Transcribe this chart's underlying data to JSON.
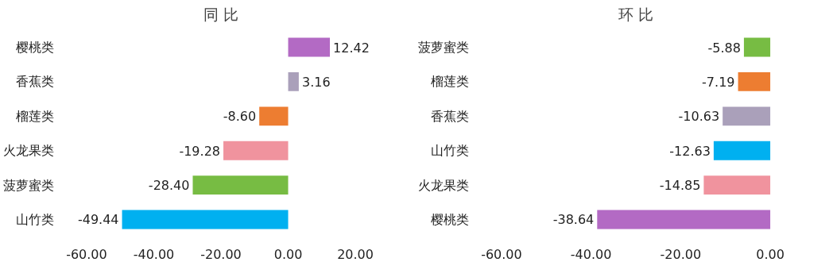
{
  "chart_data": [
    {
      "type": "bar",
      "orientation": "horizontal",
      "title": "同 比",
      "categories": [
        "樱桃类",
        "香蕉类",
        "榴莲类",
        "火龙果类",
        "菠萝蜜类",
        "山竹类"
      ],
      "values": [
        12.42,
        3.16,
        -8.6,
        -19.28,
        -28.4,
        -49.44
      ],
      "colors": [
        "#b36ac4",
        "#aaa0ba",
        "#ed7d31",
        "#f0939e",
        "#77bc43",
        "#00b0f0"
      ],
      "value_labels": [
        "12.42",
        "3.16",
        "-8.60",
        "-19.28",
        "-28.40",
        "-49.44"
      ],
      "xlim": [
        -60,
        20
      ],
      "xticks": [
        {
          "value": -60,
          "label": "-60.00"
        },
        {
          "value": -40,
          "label": "-40.00"
        },
        {
          "value": -20,
          "label": "-20.00"
        },
        {
          "value": 0,
          "label": "0.00"
        },
        {
          "value": 20,
          "label": "20.00"
        }
      ],
      "grid": false
    },
    {
      "type": "bar",
      "orientation": "horizontal",
      "title": "环 比",
      "categories": [
        "菠萝蜜类",
        "榴莲类",
        "香蕉类",
        "山竹类",
        "火龙果类",
        "樱桃类"
      ],
      "values": [
        -5.88,
        -7.19,
        -10.63,
        -12.63,
        -14.85,
        -38.64
      ],
      "colors": [
        "#77bc43",
        "#ed7d31",
        "#aaa0ba",
        "#00b0f0",
        "#f0939e",
        "#b36ac4"
      ],
      "value_labels": [
        "-5.88",
        "-7.19",
        "-10.63",
        "-12.63",
        "-14.85",
        "-38.64"
      ],
      "xlim": [
        -60,
        0
      ],
      "xticks": [
        {
          "value": -60,
          "label": "-60.00"
        },
        {
          "value": -40,
          "label": "-40.00"
        },
        {
          "value": -20,
          "label": "-20.00"
        },
        {
          "value": 0,
          "label": "0.00"
        }
      ],
      "grid": false
    }
  ]
}
